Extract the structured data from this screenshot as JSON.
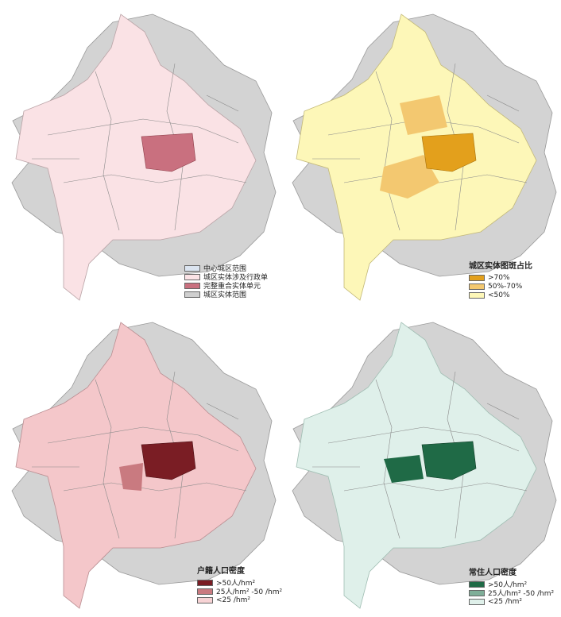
{
  "panels": [
    {
      "legend": {
        "items": [
          {
            "label": "中心城区范围",
            "color": "#dbe4f0"
          },
          {
            "label": "城区实体涉及行政单",
            "color": "#fbe3e6"
          },
          {
            "label": "完整重合实体单元",
            "color": "#c9707f"
          },
          {
            "label": "城区实体范围",
            "color": "#cfcfcf"
          }
        ]
      }
    },
    {
      "legend": {
        "title": "城区实体图斑占比",
        "items": [
          {
            "label": ">70%",
            "color": "#e3a01c"
          },
          {
            "label": "50%-70%",
            "color": "#f3c870"
          },
          {
            "label": "<50%",
            "color": "#fdf7b8"
          }
        ]
      }
    },
    {
      "legend": {
        "title": "户籍人口密度",
        "items": [
          {
            "label": ">50人/hm²",
            "color": "#7a1d24"
          },
          {
            "label": "25人/hm² -50 /hm²",
            "color": "#c97a80"
          },
          {
            "label": "<25 /hm²",
            "color": "#f7d3d5"
          }
        ]
      }
    },
    {
      "legend": {
        "title": "常住人口密度",
        "items": [
          {
            "label": ">50人/hm²",
            "color": "#1f6a46"
          },
          {
            "label": "25人/hm² -50 /hm²",
            "color": "#7fae98"
          },
          {
            "label": "<25 /hm²",
            "color": "#dff0ea"
          }
        ]
      }
    }
  ]
}
